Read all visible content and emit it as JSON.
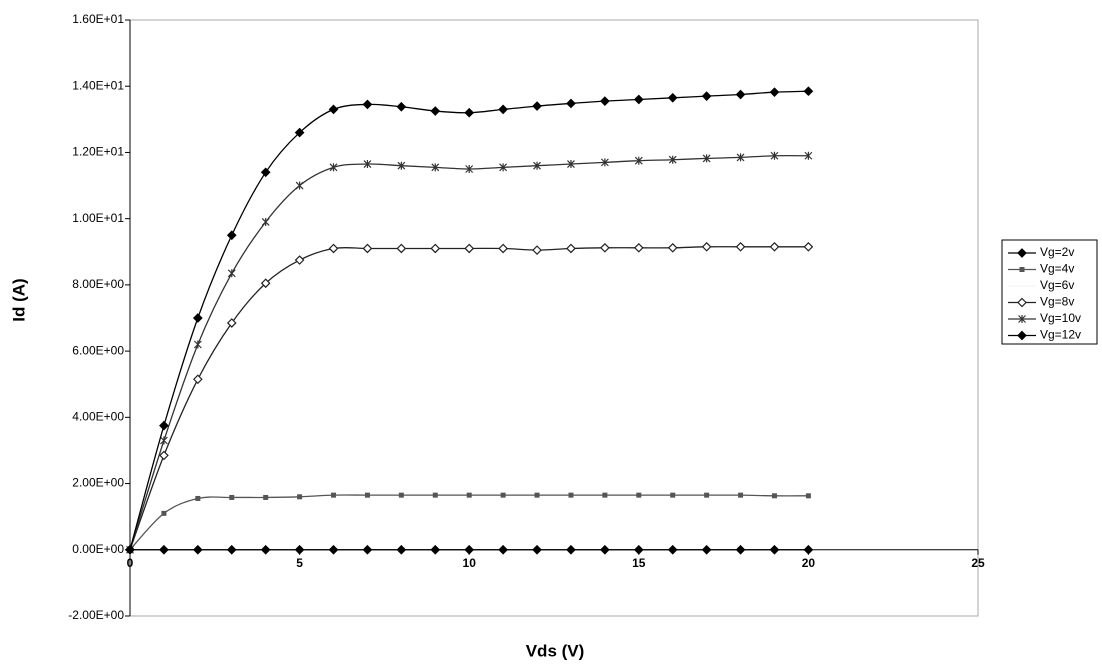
{
  "chart_data": {
    "type": "line",
    "x_label": "Vds (V)",
    "y_label": "Id (A)",
    "x": [
      0,
      1,
      2,
      3,
      4,
      5,
      6,
      7,
      8,
      9,
      10,
      11,
      12,
      13,
      14,
      15,
      16,
      17,
      18,
      19,
      20
    ],
    "series": [
      {
        "name": "Vg=2v",
        "color": "#000000",
        "marker": "diamond",
        "values": [
          0,
          0,
          0,
          0,
          0,
          0,
          0,
          0,
          0,
          0,
          0,
          0,
          0,
          0,
          0,
          0,
          0,
          0,
          0,
          0,
          0
        ]
      },
      {
        "name": "Vg=4v",
        "color": "#555555",
        "marker": "square",
        "values": [
          0,
          1.1,
          1.55,
          1.58,
          1.58,
          1.6,
          1.65,
          1.65,
          1.65,
          1.65,
          1.65,
          1.65,
          1.65,
          1.65,
          1.65,
          1.65,
          1.65,
          1.65,
          1.65,
          1.63,
          1.63
        ]
      },
      {
        "name": "Vg=6v",
        "color": "#f4f4f4",
        "marker": "none",
        "values": [
          null,
          null,
          null,
          null,
          null,
          null,
          null,
          null,
          null,
          null,
          null,
          null,
          null,
          null,
          null,
          null,
          null,
          null,
          null,
          null,
          null
        ]
      },
      {
        "name": "Vg=8v",
        "color": "#222222",
        "marker": "open-diamond",
        "values": [
          0,
          2.85,
          5.15,
          6.85,
          8.05,
          8.75,
          9.1,
          9.1,
          9.1,
          9.1,
          9.1,
          9.1,
          9.05,
          9.1,
          9.12,
          9.12,
          9.12,
          9.15,
          9.15,
          9.15,
          9.15
        ]
      },
      {
        "name": "Vg=10v",
        "color": "#333333",
        "marker": "star",
        "values": [
          0,
          3.3,
          6.2,
          8.35,
          9.9,
          11.0,
          11.55,
          11.65,
          11.6,
          11.55,
          11.5,
          11.55,
          11.6,
          11.65,
          11.7,
          11.75,
          11.78,
          11.82,
          11.85,
          11.9,
          11.9
        ]
      },
      {
        "name": "Vg=12v",
        "color": "#000000",
        "marker": "diamond",
        "values": [
          0,
          3.75,
          7.0,
          9.5,
          11.4,
          12.6,
          13.3,
          13.45,
          13.38,
          13.25,
          13.2,
          13.3,
          13.4,
          13.48,
          13.55,
          13.6,
          13.65,
          13.7,
          13.75,
          13.82,
          13.85
        ]
      }
    ],
    "xlim": [
      0,
      25
    ],
    "xticks": [
      0,
      5,
      10,
      15,
      20,
      25
    ],
    "ylim": [
      -2,
      16
    ],
    "yticks": [
      {
        "value": -2,
        "label": "-2.00E+00"
      },
      {
        "value": 0,
        "label": "0.00E+00"
      },
      {
        "value": 2,
        "label": "2.00E+00"
      },
      {
        "value": 4,
        "label": "4.00E+00"
      },
      {
        "value": 6,
        "label": "6.00E+00"
      },
      {
        "value": 8,
        "label": "8.00E+00"
      },
      {
        "value": 10,
        "label": "1.00E+01"
      },
      {
        "value": 12,
        "label": "1.20E+01"
      },
      {
        "value": 14,
        "label": "1.40E+01"
      },
      {
        "value": 16,
        "label": "1.60E+01"
      }
    ],
    "grid": false
  }
}
